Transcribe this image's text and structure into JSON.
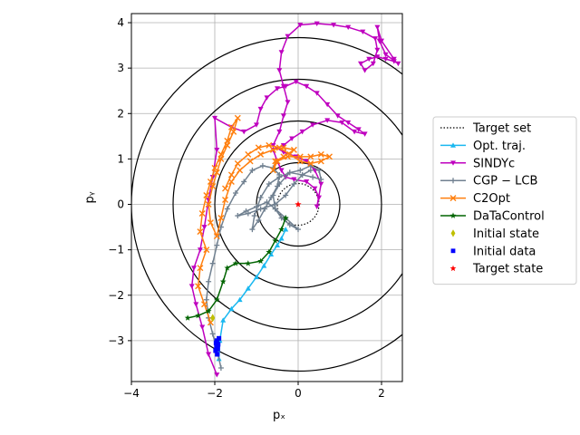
{
  "chart_data": {
    "type": "line",
    "xlabel": "pₓ",
    "ylabel": "pᵧ",
    "xlim": [
      -4,
      2.5
    ],
    "ylim": [
      -3.9,
      4.2
    ],
    "xticks": [
      -4,
      -2,
      0,
      2
    ],
    "yticks": [
      -3,
      -2,
      -1,
      0,
      1,
      2,
      3,
      4
    ],
    "grid": true,
    "aspect": "equal",
    "legend": "outside-right",
    "circles": {
      "center": [
        0,
        0
      ],
      "radii": [
        1,
        2,
        3,
        4
      ],
      "color": "#000000"
    },
    "target_set": {
      "name": "Target set",
      "center": [
        0,
        0
      ],
      "radius": 0.5,
      "color": "#000000",
      "style": "dotted"
    },
    "series": [
      {
        "name": "Opt.  traj.",
        "color": "#1ab8f0",
        "marker": "triangle-up",
        "points": [
          [
            -1.9,
            -3.4
          ],
          [
            -1.88,
            -3.0
          ],
          [
            -1.8,
            -2.55
          ],
          [
            -1.6,
            -2.3
          ],
          [
            -1.4,
            -2.1
          ],
          [
            -1.2,
            -1.85
          ],
          [
            -1.0,
            -1.6
          ],
          [
            -0.82,
            -1.35
          ],
          [
            -0.65,
            -1.1
          ],
          [
            -0.5,
            -0.9
          ],
          [
            -0.4,
            -0.75
          ],
          [
            -0.3,
            -0.55
          ]
        ]
      },
      {
        "name": "SINDYc",
        "color": "#bf00bf",
        "marker": "triangle-down",
        "points": [
          [
            -1.95,
            -3.75
          ],
          [
            -2.15,
            -3.3
          ],
          [
            -2.3,
            -2.7
          ],
          [
            -2.45,
            -2.2
          ],
          [
            -2.55,
            -1.8
          ],
          [
            -2.5,
            -1.4
          ],
          [
            -2.35,
            -1.0
          ],
          [
            -2.25,
            -0.5
          ],
          [
            -2.15,
            0.1
          ],
          [
            -2.05,
            0.6
          ],
          [
            -1.95,
            1.2
          ],
          [
            -2.0,
            1.9
          ],
          [
            -1.6,
            1.7
          ],
          [
            -1.3,
            1.6
          ],
          [
            -1.0,
            1.75
          ],
          [
            -0.9,
            2.1
          ],
          [
            -0.75,
            2.35
          ],
          [
            -0.5,
            2.55
          ],
          [
            -0.3,
            2.6
          ],
          [
            -0.05,
            2.7
          ],
          [
            0.2,
            2.6
          ],
          [
            0.45,
            2.45
          ],
          [
            0.7,
            2.2
          ],
          [
            0.95,
            1.95
          ],
          [
            1.2,
            1.8
          ],
          [
            1.45,
            1.65
          ],
          [
            1.6,
            1.55
          ],
          [
            1.35,
            1.6
          ],
          [
            1.05,
            1.8
          ],
          [
            0.7,
            1.85
          ],
          [
            0.35,
            1.75
          ],
          [
            0.1,
            1.6
          ],
          [
            -0.15,
            1.45
          ],
          [
            -0.35,
            1.3
          ],
          [
            -0.6,
            1.2
          ],
          [
            -0.5,
            0.95
          ],
          [
            -0.4,
            0.75
          ],
          [
            -0.3,
            0.6
          ],
          [
            -0.1,
            0.55
          ],
          [
            0.2,
            0.5
          ],
          [
            0.4,
            0.35
          ],
          [
            0.5,
            0.15
          ],
          [
            0.45,
            -0.05
          ],
          [
            0.55,
            0.45
          ],
          [
            0.4,
            0.75
          ],
          [
            0.2,
            0.95
          ],
          [
            -0.05,
            1.05
          ],
          [
            -0.35,
            1.15
          ],
          [
            -0.6,
            1.3
          ],
          [
            -0.45,
            1.6
          ],
          [
            -0.35,
            1.95
          ],
          [
            -0.25,
            2.25
          ],
          [
            -0.35,
            2.6
          ],
          [
            -0.45,
            2.95
          ],
          [
            -0.4,
            3.35
          ],
          [
            -0.25,
            3.7
          ],
          [
            0.05,
            3.95
          ],
          [
            0.45,
            3.98
          ],
          [
            0.85,
            3.95
          ],
          [
            1.2,
            3.9
          ],
          [
            1.55,
            3.8
          ],
          [
            1.85,
            3.65
          ],
          [
            1.9,
            3.4
          ],
          [
            1.8,
            3.1
          ],
          [
            1.6,
            2.95
          ],
          [
            1.5,
            3.1
          ],
          [
            1.7,
            3.2
          ],
          [
            1.9,
            3.25
          ],
          [
            2.1,
            3.2
          ],
          [
            2.3,
            3.15
          ],
          [
            2.4,
            3.1
          ],
          [
            2.1,
            3.3
          ],
          [
            1.95,
            3.6
          ],
          [
            1.9,
            3.9
          ],
          [
            2.0,
            3.6
          ],
          [
            2.3,
            3.2
          ]
        ]
      },
      {
        "name": "CGP − LCB",
        "color": "#708090",
        "marker": "plus",
        "points": [
          [
            -1.85,
            -3.6
          ],
          [
            -1.95,
            -3.2
          ],
          [
            -2.05,
            -2.85
          ],
          [
            -2.15,
            -2.5
          ],
          [
            -2.2,
            -2.1
          ],
          [
            -2.15,
            -1.7
          ],
          [
            -2.05,
            -1.3
          ],
          [
            -1.95,
            -0.9
          ],
          [
            -1.85,
            -0.5
          ],
          [
            -1.7,
            -0.1
          ],
          [
            -1.5,
            0.25
          ],
          [
            -1.3,
            0.5
          ],
          [
            -1.1,
            0.75
          ],
          [
            -0.85,
            0.85
          ],
          [
            -0.6,
            0.8
          ],
          [
            -0.45,
            0.65
          ],
          [
            -0.5,
            0.4
          ],
          [
            -0.65,
            0.15
          ],
          [
            -0.8,
            -0.1
          ],
          [
            -0.95,
            -0.35
          ],
          [
            -1.1,
            -0.55
          ],
          [
            -1.05,
            -0.25
          ],
          [
            -0.9,
            0.15
          ],
          [
            -0.7,
            0.45
          ],
          [
            -0.45,
            0.6
          ],
          [
            -0.2,
            0.7
          ],
          [
            0.1,
            0.65
          ],
          [
            0.35,
            0.6
          ],
          [
            0.55,
            0.55
          ],
          [
            0.5,
            0.75
          ],
          [
            0.3,
            0.85
          ],
          [
            0.05,
            0.75
          ],
          [
            -0.2,
            0.7
          ],
          [
            -0.45,
            0.45
          ],
          [
            -0.6,
            0.2
          ],
          [
            -0.55,
            -0.1
          ],
          [
            -0.4,
            -0.3
          ],
          [
            -0.2,
            -0.45
          ],
          [
            0.0,
            -0.55
          ],
          [
            -0.3,
            -0.3
          ],
          [
            -0.55,
            -0.1
          ],
          [
            -0.75,
            0.05
          ],
          [
            -1.0,
            -0.05
          ],
          [
            -1.25,
            -0.15
          ],
          [
            -1.45,
            -0.25
          ],
          [
            -1.2,
            -0.2
          ],
          [
            -0.9,
            -0.1
          ],
          [
            -0.55,
            0.0
          ],
          [
            -0.3,
            0.2
          ],
          [
            -0.1,
            0.45
          ],
          [
            0.1,
            0.65
          ],
          [
            0.3,
            0.75
          ]
        ]
      },
      {
        "name": "C2Opt",
        "color": "#ff7f0e",
        "marker": "x",
        "points": [
          [
            -2.1,
            -2.6
          ],
          [
            -2.25,
            -2.2
          ],
          [
            -2.4,
            -1.8
          ],
          [
            -2.35,
            -1.4
          ],
          [
            -2.2,
            -1.0
          ],
          [
            -2.35,
            -0.6
          ],
          [
            -2.3,
            -0.2
          ],
          [
            -2.2,
            0.2
          ],
          [
            -2.1,
            0.5
          ],
          [
            -2.0,
            0.8
          ],
          [
            -1.85,
            1.1
          ],
          [
            -1.7,
            1.4
          ],
          [
            -1.6,
            1.7
          ],
          [
            -1.45,
            1.9
          ],
          [
            -1.55,
            1.6
          ],
          [
            -1.7,
            1.3
          ],
          [
            -1.85,
            1.0
          ],
          [
            -1.95,
            0.7
          ],
          [
            -2.05,
            0.4
          ],
          [
            -2.15,
            0.0
          ],
          [
            -2.1,
            -0.4
          ],
          [
            -1.95,
            -0.7
          ],
          [
            -1.85,
            -0.3
          ],
          [
            -1.75,
            0.1
          ],
          [
            -1.6,
            0.5
          ],
          [
            -1.4,
            0.75
          ],
          [
            -1.15,
            0.95
          ],
          [
            -0.9,
            1.1
          ],
          [
            -0.6,
            1.2
          ],
          [
            -0.35,
            1.25
          ],
          [
            -0.1,
            1.2
          ],
          [
            -0.35,
            1.05
          ],
          [
            -0.55,
            0.95
          ],
          [
            -0.6,
            0.75
          ],
          [
            -0.5,
            0.95
          ],
          [
            -0.25,
            1.05
          ],
          [
            0.05,
            1.05
          ],
          [
            0.3,
            1.05
          ],
          [
            0.55,
            1.1
          ],
          [
            0.75,
            1.05
          ],
          [
            0.55,
            0.95
          ],
          [
            0.3,
            0.9
          ],
          [
            0.05,
            0.95
          ],
          [
            -0.2,
            1.1
          ],
          [
            -0.45,
            1.25
          ],
          [
            -0.7,
            1.3
          ],
          [
            -0.95,
            1.25
          ],
          [
            -1.2,
            1.1
          ],
          [
            -1.45,
            0.9
          ],
          [
            -1.6,
            0.65
          ],
          [
            -1.75,
            0.35
          ]
        ]
      },
      {
        "name": "DaTaControl",
        "color": "#006400",
        "marker": "star",
        "points": [
          [
            -2.65,
            -2.5
          ],
          [
            -2.4,
            -2.45
          ],
          [
            -2.15,
            -2.35
          ],
          [
            -1.95,
            -2.1
          ],
          [
            -1.8,
            -1.7
          ],
          [
            -1.7,
            -1.4
          ],
          [
            -1.5,
            -1.3
          ],
          [
            -1.2,
            -1.3
          ],
          [
            -0.9,
            -1.25
          ],
          [
            -0.7,
            -1.05
          ],
          [
            -0.55,
            -0.8
          ],
          [
            -0.4,
            -0.55
          ],
          [
            -0.3,
            -0.3
          ]
        ]
      },
      {
        "name": "Initial state",
        "color": "#bfbf00",
        "marker": "diamond",
        "style": "points",
        "points": [
          [
            -2.05,
            -2.5
          ]
        ]
      },
      {
        "name": "Initial data",
        "color": "#0000ff",
        "marker": "square",
        "style": "points",
        "points": [
          [
            -1.95,
            -3.0
          ],
          [
            -1.92,
            -3.08
          ],
          [
            -1.96,
            -3.15
          ],
          [
            -1.98,
            -3.22
          ],
          [
            -1.94,
            -3.3
          ],
          [
            -1.9,
            -2.95
          ],
          [
            -1.97,
            -3.05
          ],
          [
            -1.93,
            -3.18
          ]
        ]
      },
      {
        "name": "Target state",
        "color": "#ff0000",
        "marker": "star",
        "style": "points",
        "points": [
          [
            0,
            0
          ]
        ]
      }
    ]
  }
}
